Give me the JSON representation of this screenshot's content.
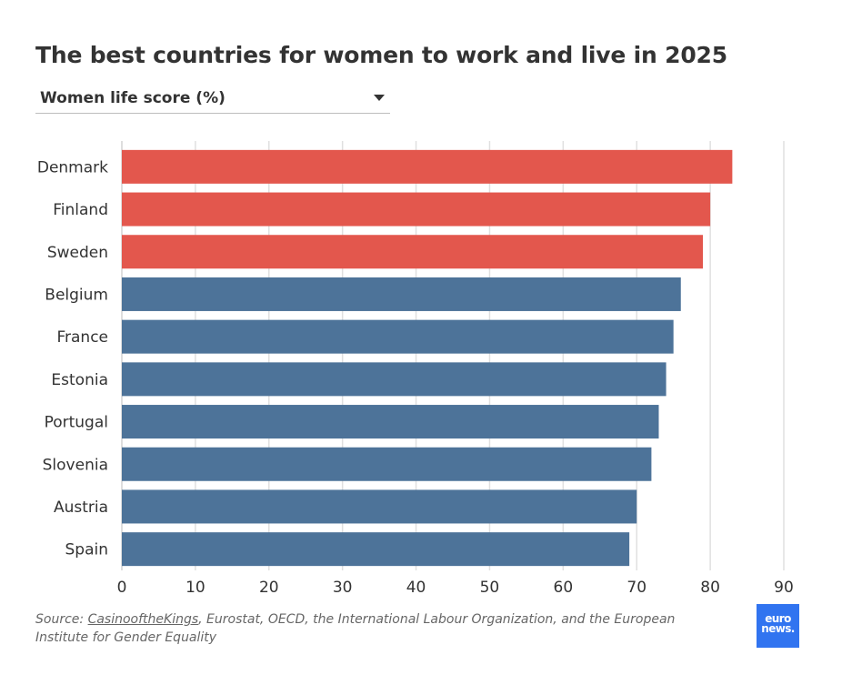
{
  "title": "The best countries for women to work and live in 2025",
  "dropdown": {
    "selected": "Women life score (%)"
  },
  "source": {
    "prefix": "Source: ",
    "link_text": "CasinooftheKings",
    "rest": ", Eurostat, OECD, the International Labour Organization, and the European Institute for Gender Equality"
  },
  "logo": {
    "line1": "euro",
    "line2": "news."
  },
  "colors": {
    "top3": "#e3574d",
    "rest": "#4d7399",
    "grid": "#e0e0e0",
    "text": "#333333"
  },
  "chart_data": {
    "type": "bar",
    "orientation": "horizontal",
    "categories": [
      "Denmark",
      "Finland",
      "Sweden",
      "Belgium",
      "France",
      "Estonia",
      "Portugal",
      "Slovenia",
      "Austria",
      "Spain"
    ],
    "values": [
      83,
      80,
      79,
      76,
      75,
      74,
      73,
      72,
      70,
      69
    ],
    "highlight": [
      true,
      true,
      true,
      false,
      false,
      false,
      false,
      false,
      false,
      false
    ],
    "xlim": [
      0,
      90
    ],
    "xticks": [
      "0",
      "10",
      "20",
      "30",
      "40",
      "50",
      "60",
      "70",
      "80",
      "90"
    ],
    "grid": true,
    "title": "The best countries for women to work and live in 2025",
    "xlabel": "",
    "ylabel": ""
  }
}
